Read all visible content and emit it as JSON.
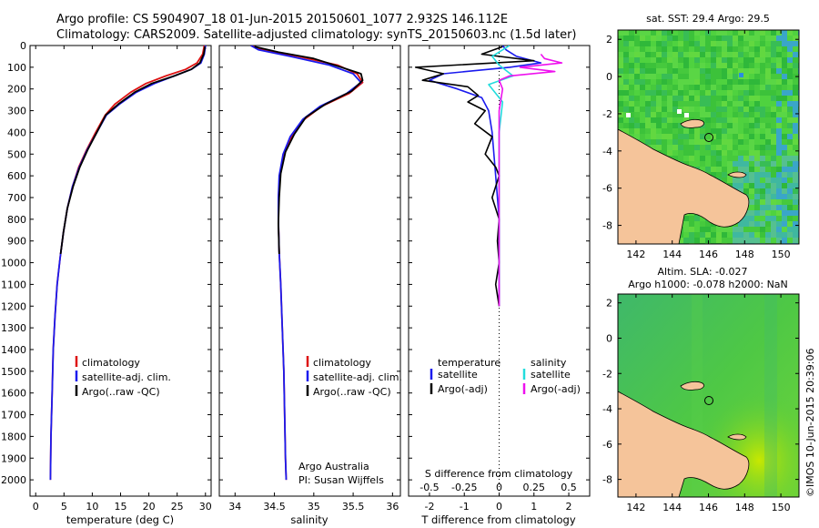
{
  "header": {
    "line1": "Argo profile: CS 5904907_18 01-Jun-2015 20150601_1077 2.932S 146.112E",
    "line2": "Climatology: CARS2009. Satellite-adjusted climatology: synTS_20150603.nc (1.5d later)"
  },
  "colors": {
    "climatology": "#dd1111",
    "satellite_adj": "#1a1aee",
    "argo": "#000000",
    "salinity_satellite": "#22dddd",
    "salinity_argo": "#ee11ee",
    "land": "#f5c49a"
  },
  "chart_data": [
    {
      "id": "temperature",
      "type": "line",
      "title": "",
      "xlabel": "temperature (deg C)",
      "ylabel": "",
      "xlim": [
        -1,
        31
      ],
      "ylim": [
        2075,
        0
      ],
      "xticks": [
        0,
        5,
        10,
        15,
        20,
        25,
        30
      ],
      "yticks": [
        0,
        100,
        200,
        300,
        400,
        500,
        600,
        700,
        800,
        900,
        1000,
        1100,
        1200,
        1300,
        1400,
        1500,
        1600,
        1700,
        1800,
        1900,
        2000
      ],
      "legend": [
        "climatology",
        "satellite-adj. clim.",
        "Argo(..raw -QC)"
      ],
      "legend_placement": "lower-center",
      "series": [
        {
          "name": "climatology",
          "color": "#dd1111",
          "x": [
            29.8,
            29.5,
            28.5,
            26.5,
            23.0,
            19.5,
            16.8,
            14.0,
            12.3,
            10.6,
            9.0,
            7.6,
            6.5,
            5.6,
            4.9,
            4.3,
            3.8,
            3.4,
            3.1,
            2.9,
            2.7,
            2.6
          ],
          "y": [
            0,
            40,
            80,
            110,
            140,
            175,
            215,
            270,
            320,
            400,
            480,
            560,
            650,
            750,
            860,
            980,
            1100,
            1250,
            1400,
            1600,
            1800,
            2000
          ]
        },
        {
          "name": "satellite-adj. clim.",
          "color": "#1a1aee",
          "x": [
            30.0,
            29.8,
            29.2,
            27.5,
            24.5,
            21.0,
            17.8,
            14.8,
            12.5,
            10.8,
            9.1,
            7.7,
            6.5,
            5.6,
            4.9,
            4.3,
            3.8,
            3.4,
            3.1,
            2.9,
            2.7,
            2.6
          ],
          "y": [
            0,
            40,
            80,
            110,
            140,
            175,
            215,
            270,
            320,
            400,
            480,
            560,
            650,
            750,
            860,
            980,
            1100,
            1250,
            1400,
            1600,
            1800,
            2000
          ]
        },
        {
          "name": "Argo(..raw -QC)",
          "color": "#000000",
          "x": [
            29.9,
            29.7,
            29.0,
            27.5,
            24.5,
            20.5,
            17.5,
            14.6,
            12.4,
            10.8,
            9.2,
            7.8,
            6.6,
            5.6,
            4.9,
            4.4
          ],
          "y": [
            5,
            40,
            80,
            110,
            140,
            175,
            215,
            270,
            320,
            400,
            480,
            560,
            650,
            750,
            860,
            960
          ]
        }
      ]
    },
    {
      "id": "salinity",
      "type": "line",
      "title": "",
      "xlabel": "salinity",
      "xlim": [
        33.8,
        36.1
      ],
      "ylim": [
        2075,
        0
      ],
      "xticks": [
        34,
        34.5,
        35,
        35.5,
        36
      ],
      "legend": [
        "climatology",
        "satellite-adj. clim.",
        "Argo(..raw -QC)"
      ],
      "annotation": [
        "Argo Australia",
        "PI: Susan Wijffels"
      ],
      "series": [
        {
          "name": "climatology",
          "color": "#dd1111",
          "x": [
            34.2,
            34.35,
            34.8,
            35.3,
            35.55,
            35.62,
            35.45,
            35.1,
            34.88,
            34.72,
            34.62,
            34.57,
            34.55,
            34.55,
            34.56,
            34.58,
            34.6,
            34.62,
            34.63,
            34.64,
            34.65
          ],
          "y": [
            0,
            20,
            50,
            90,
            130,
            170,
            220,
            280,
            340,
            420,
            500,
            600,
            700,
            800,
            950,
            1100,
            1300,
            1500,
            1700,
            1900,
            2000
          ]
        },
        {
          "name": "satellite-adj. clim.",
          "color": "#1a1aee",
          "x": [
            34.2,
            34.3,
            34.7,
            35.2,
            35.5,
            35.6,
            35.42,
            35.08,
            34.86,
            34.7,
            34.61,
            34.56,
            34.55,
            34.55,
            34.56,
            34.58,
            34.6,
            34.62,
            34.63,
            34.64,
            34.65
          ],
          "y": [
            0,
            20,
            50,
            90,
            130,
            170,
            220,
            280,
            340,
            420,
            500,
            600,
            700,
            800,
            950,
            1100,
            1300,
            1500,
            1700,
            1900,
            2000
          ]
        },
        {
          "name": "Argo(..raw -QC)",
          "color": "#000000",
          "x": [
            34.25,
            34.55,
            35.0,
            35.35,
            35.6,
            35.62,
            35.48,
            35.15,
            34.9,
            34.75,
            34.64,
            34.58,
            34.56,
            34.55,
            34.56
          ],
          "y": [
            5,
            30,
            60,
            100,
            130,
            160,
            210,
            270,
            330,
            410,
            490,
            590,
            700,
            820,
            960
          ]
        }
      ]
    },
    {
      "id": "difference",
      "type": "line",
      "title": "",
      "xlabel": "T difference from climatology",
      "xlabel_top": "S difference from climatology",
      "xlim": [
        -2.6,
        2.6
      ],
      "ylim": [
        2075,
        0
      ],
      "xticks_bottom": [
        -2,
        -1,
        0,
        1,
        2
      ],
      "xticks_top": [
        "-0.5",
        "-0.25",
        "0",
        "0.25",
        "0.5"
      ],
      "legend": [
        "temperature",
        "salinity",
        "satellite",
        "satellite",
        "Argo(-adj)",
        "Argo(-adj)"
      ],
      "series": [
        {
          "name": "temperature satellite",
          "color": "#1a1aee",
          "x": [
            0.1,
            0.2,
            0.5,
            1.2,
            0.3,
            -1.6,
            -2.0,
            -1.2,
            -0.5,
            -0.3,
            -0.2,
            -0.1,
            0.0,
            0.0
          ],
          "y": [
            0,
            20,
            50,
            80,
            100,
            130,
            160,
            200,
            240,
            300,
            400,
            600,
            800,
            1200
          ]
        },
        {
          "name": "temperature Argo(-adj)",
          "color": "#000000",
          "x": [
            0.1,
            -0.5,
            1.0,
            -2.4,
            -1.6,
            -2.2,
            -0.9,
            -0.6,
            -0.9,
            -0.4,
            -0.7,
            -0.2,
            -0.4,
            -0.1,
            0.0,
            -0.2,
            0.0,
            -0.05,
            0.0,
            -0.1,
            0.0
          ],
          "y": [
            5,
            40,
            70,
            100,
            130,
            160,
            190,
            230,
            260,
            300,
            360,
            420,
            500,
            560,
            600,
            700,
            800,
            900,
            1000,
            1100,
            1200
          ]
        },
        {
          "name": "salinity satellite",
          "color": "#22dddd",
          "x": [
            0.3,
            -0.2,
            0.0,
            0.4,
            -0.3,
            0.1,
            0.0,
            0.0,
            0.0
          ],
          "y": [
            0,
            50,
            90,
            140,
            180,
            260,
            400,
            700,
            1100
          ]
        },
        {
          "name": "salinity Argo(-adj)",
          "color": "#ee11ee",
          "x": [
            1.2,
            1.3,
            1.8,
            0.6,
            1.6,
            0.3,
            0.0,
            0.1,
            0.0,
            0.0
          ],
          "y": [
            40,
            60,
            80,
            100,
            120,
            140,
            160,
            200,
            300,
            1200
          ]
        }
      ]
    },
    {
      "id": "sst-map",
      "type": "heatmap",
      "title": "sat. SST: 29.4  Argo: 29.5",
      "xlim": [
        141,
        151
      ],
      "ylim": [
        -9,
        2.5
      ],
      "xticks": [
        142,
        144,
        146,
        148,
        150
      ],
      "yticks": [
        2,
        0,
        -2,
        -4,
        -6,
        -8
      ],
      "float_position": {
        "lon": 146.112,
        "lat": -2.932
      }
    },
    {
      "id": "sla-map",
      "type": "heatmap",
      "title": "Altim. SLA: -0.027",
      "subtitle": "Argo h1000: -0.078  h2000: NaN",
      "xlim": [
        141,
        151
      ],
      "ylim": [
        -9,
        2.5
      ],
      "xticks": [
        142,
        144,
        146,
        148,
        150
      ],
      "yticks": [
        2,
        0,
        -2,
        -4,
        -6,
        -8
      ],
      "float_position": {
        "lon": 146.112,
        "lat": -2.932
      }
    }
  ],
  "footer": {
    "stamp": "©IMOS 10-Jun-2015 20:39:06"
  }
}
